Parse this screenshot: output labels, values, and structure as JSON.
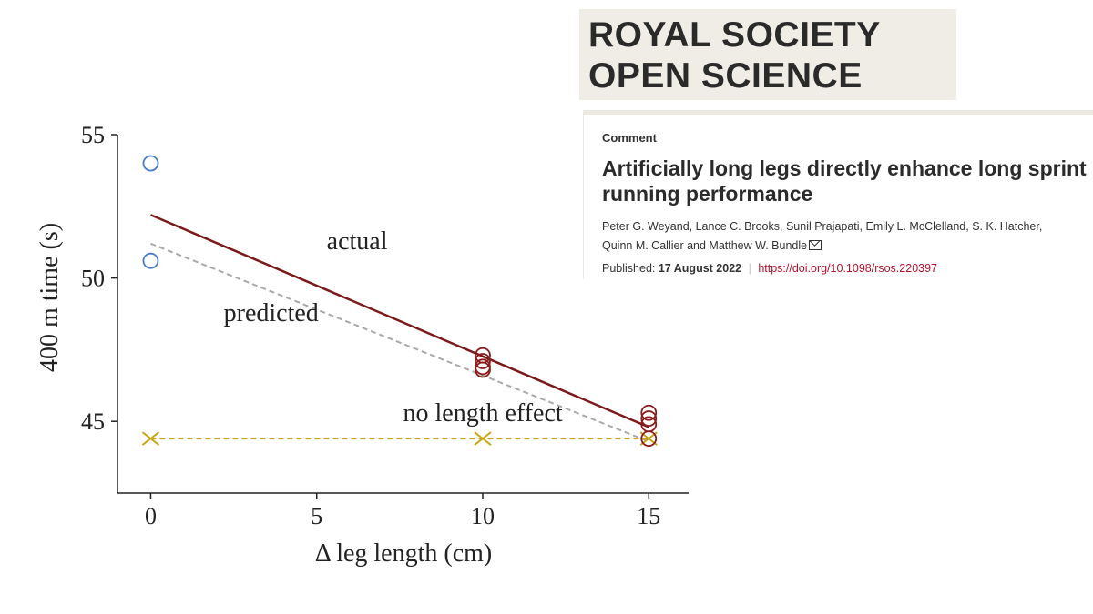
{
  "journal": {
    "line1": "ROYAL SOCIETY",
    "line2": "OPEN SCIENCE"
  },
  "article": {
    "type": "Comment",
    "title": "Artificially long legs directly enhance long sprint running performance",
    "authors_line1": "Peter G. Weyand, Lance C. Brooks, Sunil Prajapati, Emily L. McClelland, S. K. Hatcher,",
    "authors_line2": "Quinn M. Callier and Matthew W. Bundle",
    "published_label": "Published:",
    "published_date": "17 August 2022",
    "doi": "https://doi.org/10.1098/rsos.220397"
  },
  "chart_data": {
    "type": "scatter",
    "xlabel": "Δ leg length (cm)",
    "ylabel": "400 m time (s)",
    "xlim": [
      -1,
      16.2
    ],
    "ylim": [
      42.5,
      55
    ],
    "x_ticks": [
      0,
      5,
      10,
      15
    ],
    "y_ticks": [
      45,
      50,
      55
    ],
    "grid": false,
    "series": [
      {
        "name": "actual",
        "kind": "line",
        "color": "#7b1a1a",
        "dash": "solid",
        "x": [
          0,
          15
        ],
        "y": [
          52.2,
          44.8
        ]
      },
      {
        "name": "predicted",
        "kind": "line",
        "color": "#a9a9a9",
        "dash": "dashed",
        "x": [
          0,
          15
        ],
        "y": [
          51.2,
          44.3
        ]
      },
      {
        "name": "no length effect",
        "kind": "line+markers",
        "color": "#c8a415",
        "dash": "dashed",
        "marker": "x",
        "x": [
          0,
          10,
          15
        ],
        "y": [
          44.4,
          44.4,
          44.4
        ]
      },
      {
        "kind": "markers",
        "marker": "circle",
        "color": "#4a7cc7",
        "x": [
          0,
          0
        ],
        "y": [
          54.0,
          50.6
        ]
      },
      {
        "kind": "markers",
        "marker": "circle",
        "color": "#8b1c1c",
        "x": [
          10,
          10,
          10,
          10,
          15,
          15,
          15,
          15
        ],
        "y": [
          47.3,
          47.1,
          46.9,
          46.8,
          45.3,
          45.1,
          44.9,
          44.4
        ]
      }
    ],
    "annotations": [
      {
        "text": "actual",
        "x": 5.3,
        "y": 51.0
      },
      {
        "text": "predicted",
        "x": 2.2,
        "y": 48.5
      },
      {
        "text": "no length effect",
        "x": 7.6,
        "y": 45.0
      }
    ]
  }
}
